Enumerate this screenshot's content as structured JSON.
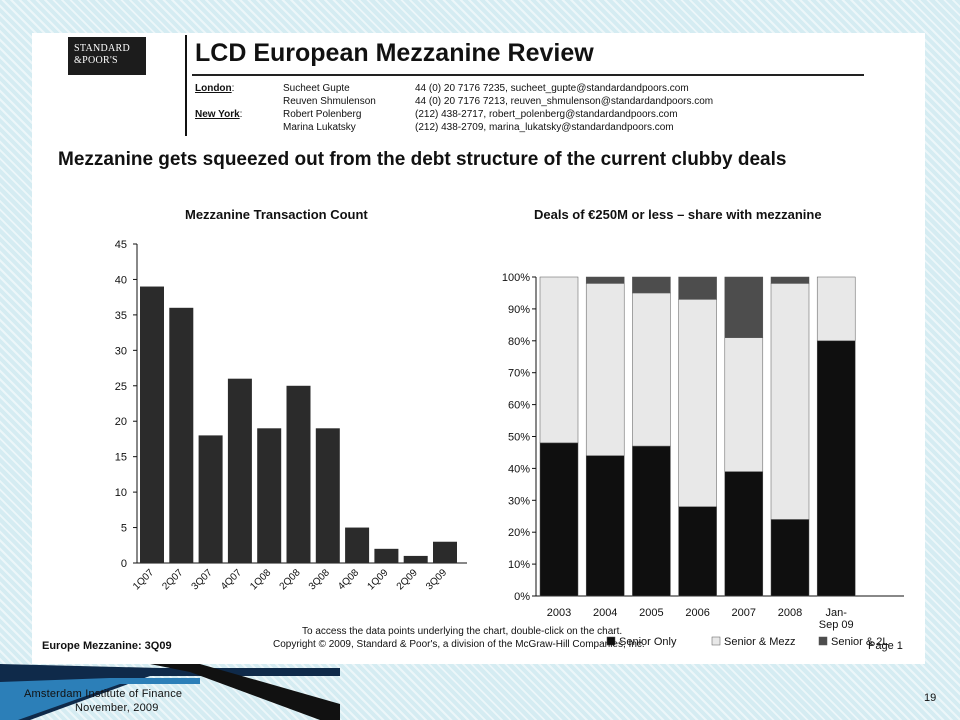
{
  "report": {
    "logo_line1": "STANDARD",
    "logo_line2": "&POOR'S",
    "title": "LCD European Mezzanine Review",
    "contacts": [
      {
        "city": "London",
        "name": "Sucheet Gupte",
        "info": "44 (0) 20 7176 7235, sucheet_gupte@standardandpoors.com"
      },
      {
        "city": "",
        "name": "Reuven Shmulenson",
        "info": "44 (0) 20 7176 7213, reuven_shmulenson@standardandpoors.com"
      },
      {
        "city": "New York",
        "name": "Robert Polenberg",
        "info": "(212) 438-2717, robert_polenberg@standardandpoors.com"
      },
      {
        "city": "",
        "name": "Marina Lukatsky",
        "info": "(212) 438-2709, marina_lukatsky@standardandpoors.com"
      }
    ],
    "headline": "Mezzanine gets squeezed out from the debt structure of the current clubby deals",
    "footer_left": "Europe Mezzanine: 3Q09",
    "footer_note": "To access the data points underlying the chart, double-click on the chart.",
    "footer_copy": "Copyright © 2009, Standard & Poor's, a division of the McGraw-Hill Companies, Inc.",
    "footer_page": "Page 1"
  },
  "slide": {
    "institute": "Amsterdam  Institute  of  Finance",
    "date": "November, 2009",
    "number": "19"
  },
  "colors": {
    "background": "#d5ecf2",
    "bar_dark": "#2b2b2b",
    "senior_only": "#0f0f0f",
    "senior_mezz": "#e8e8e8",
    "senior_2l": "#4d4d4d"
  },
  "chart_data": [
    {
      "type": "bar",
      "title": "Mezzanine Transaction Count",
      "categories": [
        "1Q07",
        "2Q07",
        "3Q07",
        "4Q07",
        "1Q08",
        "2Q08",
        "3Q08",
        "4Q08",
        "1Q09",
        "2Q09",
        "3Q09"
      ],
      "values": [
        39,
        36,
        18,
        26,
        19,
        25,
        19,
        5,
        2,
        1,
        3
      ],
      "ylim": [
        0,
        45
      ],
      "yticks": [
        "0",
        "5",
        "10",
        "15",
        "20",
        "25",
        "30",
        "35",
        "40",
        "45"
      ],
      "grid": false
    },
    {
      "type": "bar",
      "stacked": true,
      "title": "Deals of €250M or less – share with mezzanine",
      "categories": [
        "2003",
        "2004",
        "2005",
        "2006",
        "2007",
        "2008",
        "Jan-Sep 09"
      ],
      "category_lines": [
        [
          "2003"
        ],
        [
          "2004"
        ],
        [
          "2005"
        ],
        [
          "2006"
        ],
        [
          "2007"
        ],
        [
          "2008"
        ],
        [
          "Jan-",
          "Sep 09"
        ]
      ],
      "series": [
        {
          "name": "Senior Only",
          "values": [
            48,
            44,
            47,
            28,
            39,
            24,
            80
          ]
        },
        {
          "name": "Senior & Mezz",
          "values": [
            52,
            54,
            48,
            65,
            42,
            74,
            20
          ]
        },
        {
          "name": "Senior & 2L",
          "values": [
            0,
            2,
            5,
            7,
            19,
            2,
            0
          ]
        }
      ],
      "ylim": [
        0,
        100
      ],
      "yticks": [
        "0%",
        "10%",
        "20%",
        "30%",
        "40%",
        "50%",
        "60%",
        "70%",
        "80%",
        "90%",
        "100%"
      ],
      "legend_position": "bottom",
      "grid": false
    }
  ]
}
